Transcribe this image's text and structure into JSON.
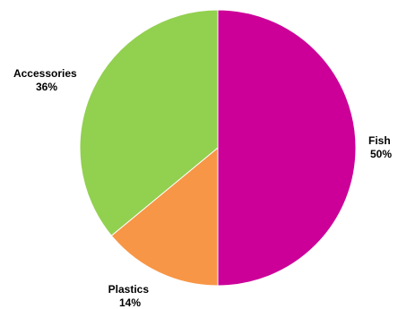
{
  "chart_data": {
    "type": "pie",
    "title": "",
    "slices": [
      {
        "label": "Fish",
        "value": 50,
        "percent_label": "50%",
        "color": "#cc0099"
      },
      {
        "label": "Plastics",
        "value": 14,
        "percent_label": "14%",
        "color": "#f79646"
      },
      {
        "label": "Accessories",
        "value": 36,
        "percent_label": "36%",
        "color": "#92d050"
      }
    ],
    "start_angle_deg": 0,
    "direction": "clockwise",
    "border_color": "#ffffff"
  }
}
